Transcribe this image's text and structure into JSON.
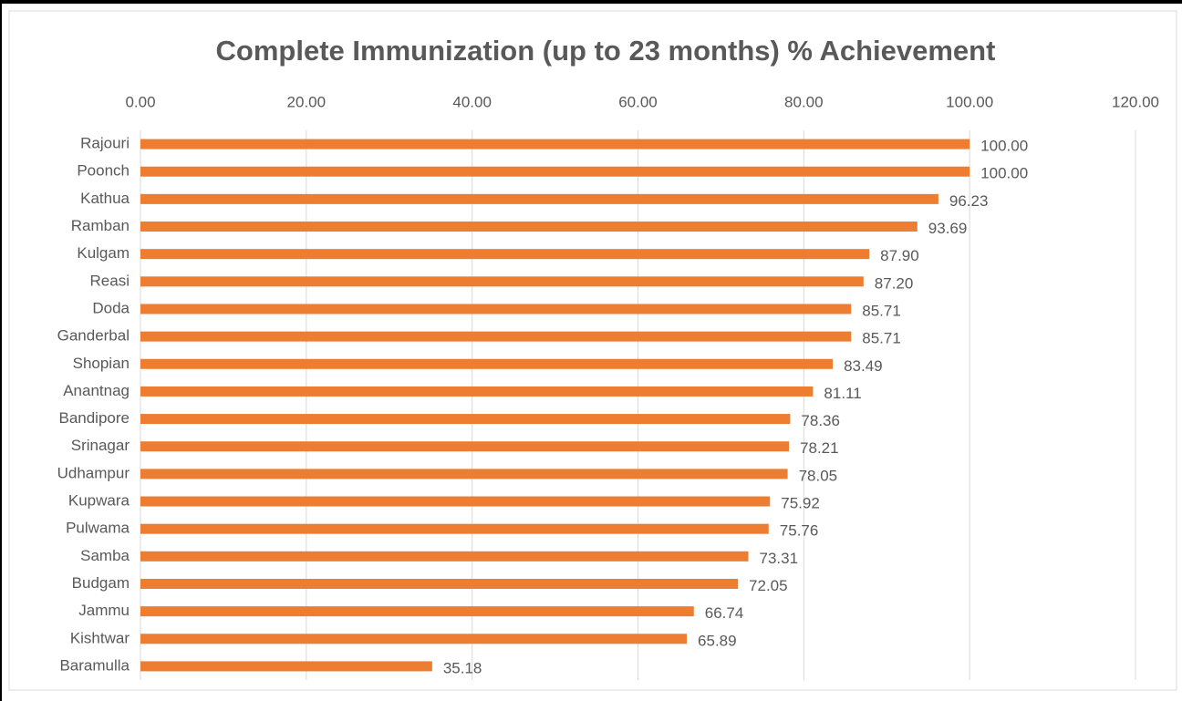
{
  "chart_data": {
    "type": "bar",
    "orientation": "horizontal",
    "title": "Complete Immunization  (up to 23 months) % Achievement",
    "categories": [
      "Rajouri",
      "Poonch",
      "Kathua",
      "Ramban",
      "Kulgam",
      "Reasi",
      "Doda",
      "Ganderbal",
      "Shopian",
      "Anantnag",
      "Bandipore",
      "Srinagar",
      "Udhampur",
      "Kupwara",
      "Pulwama",
      "Samba",
      "Budgam",
      "Jammu",
      "Kishtwar",
      "Baramulla"
    ],
    "values": [
      100,
      100,
      96.23,
      93.69,
      87.9,
      87.2,
      85.71,
      85.71,
      83.49,
      81.11,
      78.36,
      78.21,
      78.05,
      75.92,
      75.76,
      73.31,
      72.05,
      66.74,
      65.89,
      35.18
    ],
    "value_labels": [
      "100.00",
      "100.00",
      "96.23",
      "93.69",
      "87.90",
      "87.20",
      "85.71",
      "85.71",
      "83.49",
      "81.11",
      "78.36",
      "78.21",
      "78.05",
      "75.92",
      "75.76",
      "73.31",
      "72.05",
      "66.74",
      "65.89",
      "35.18"
    ],
    "color": "#ed7d31",
    "xlim": [
      0,
      120
    ],
    "xticks": [
      {
        "value": 0,
        "label": "0.00"
      },
      {
        "value": 20,
        "label": "20.00"
      },
      {
        "value": 40,
        "label": "40.00"
      },
      {
        "value": 60,
        "label": "60.00"
      },
      {
        "value": 80,
        "label": "80.00"
      },
      {
        "value": 100,
        "label": "100.00"
      },
      {
        "value": 120,
        "label": "120.00"
      }
    ],
    "grid": true
  }
}
